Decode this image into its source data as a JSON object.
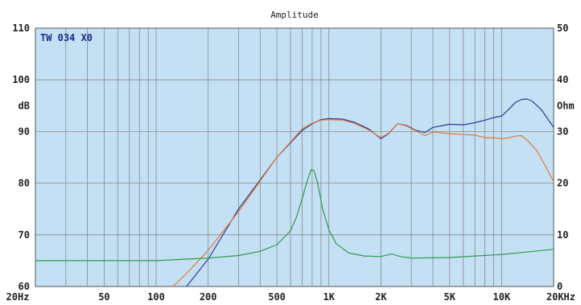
{
  "chart_data": {
    "type": "line",
    "title": "Amplitude",
    "model_label": "TW 034 X0",
    "y_left": {
      "label": "dB",
      "lim": [
        60,
        110
      ],
      "ticks": [
        60,
        70,
        80,
        90,
        100,
        110
      ],
      "tick_labels": [
        "60",
        "70",
        "80",
        "90",
        "100",
        "110"
      ]
    },
    "y_right": {
      "label": "Ohm",
      "lim": [
        0,
        50
      ],
      "ticks": [
        0,
        10,
        20,
        30,
        40,
        50
      ],
      "tick_labels": [
        "0",
        "10",
        "20",
        "30",
        "40",
        "50"
      ]
    },
    "x": {
      "scale": "log",
      "lim": [
        20,
        20000
      ],
      "ticks": [
        20,
        50,
        100,
        200,
        500,
        1000,
        2000,
        5000,
        10000,
        20000
      ],
      "tick_labels": [
        "20Hz",
        "50",
        "100",
        "200",
        "500",
        "1K",
        "2K",
        "5K",
        "10K",
        "20KHz"
      ]
    },
    "grid": true,
    "colors": {
      "background": "#c4e0f4",
      "grid": "#8a8a8a",
      "blue": "#2b3a9a",
      "orange": "#e07a3a",
      "green": "#2e9a4a"
    },
    "series": [
      {
        "color": "#2b3a9a",
        "axis": "left",
        "points": [
          [
            150,
            60
          ],
          [
            200,
            65.3
          ],
          [
            300,
            75
          ],
          [
            500,
            85
          ],
          [
            700,
            90.2
          ],
          [
            800,
            91.5
          ],
          [
            900,
            92.3
          ],
          [
            1000,
            92.5
          ],
          [
            1200,
            92.4
          ],
          [
            1400,
            91.8
          ],
          [
            1700,
            90.5
          ],
          [
            2000,
            88.6
          ],
          [
            2200,
            89.5
          ],
          [
            2500,
            91.5
          ],
          [
            2800,
            91.2
          ],
          [
            3200,
            90.2
          ],
          [
            3600,
            89.8
          ],
          [
            4000,
            90.8
          ],
          [
            5000,
            91.4
          ],
          [
            6000,
            91.3
          ],
          [
            7000,
            91.7
          ],
          [
            8000,
            92.2
          ],
          [
            9000,
            92.7
          ],
          [
            10000,
            93
          ],
          [
            11000,
            94.3
          ],
          [
            12000,
            95.6
          ],
          [
            13000,
            96.2
          ],
          [
            14000,
            96.3
          ],
          [
            15000,
            95.9
          ],
          [
            17000,
            94.2
          ],
          [
            20000,
            90.8
          ]
        ]
      },
      {
        "color": "#e07a3a",
        "axis": "left",
        "points": [
          [
            125,
            60
          ],
          [
            150,
            62.5
          ],
          [
            200,
            67
          ],
          [
            300,
            74.5
          ],
          [
            500,
            85
          ],
          [
            700,
            90.5
          ],
          [
            800,
            91.6
          ],
          [
            900,
            92.2
          ],
          [
            1000,
            92.3
          ],
          [
            1200,
            92.2
          ],
          [
            1400,
            91.6
          ],
          [
            1700,
            90.3
          ],
          [
            2000,
            88.8
          ],
          [
            2200,
            89.6
          ],
          [
            2500,
            91.5
          ],
          [
            2800,
            91.1
          ],
          [
            3200,
            90.1
          ],
          [
            3600,
            89.2
          ],
          [
            4000,
            89.9
          ],
          [
            5000,
            89.6
          ],
          [
            6000,
            89.4
          ],
          [
            7000,
            89.3
          ],
          [
            8000,
            88.8
          ],
          [
            9000,
            88.8
          ],
          [
            10000,
            88.6
          ],
          [
            11000,
            88.8
          ],
          [
            12000,
            89.1
          ],
          [
            13000,
            89.2
          ],
          [
            14000,
            88.4
          ],
          [
            16000,
            86.3
          ],
          [
            18000,
            83.2
          ],
          [
            20000,
            80.3
          ]
        ]
      },
      {
        "color": "#2e9a4a",
        "axis": "right",
        "points": [
          [
            20,
            5
          ],
          [
            100,
            5
          ],
          [
            200,
            5.5
          ],
          [
            300,
            6
          ],
          [
            400,
            6.8
          ],
          [
            500,
            8.1
          ],
          [
            600,
            10.8
          ],
          [
            650,
            13.5
          ],
          [
            700,
            17
          ],
          [
            750,
            20.5
          ],
          [
            790,
            22.6
          ],
          [
            820,
            22.4
          ],
          [
            860,
            20
          ],
          [
            920,
            15
          ],
          [
            1000,
            11
          ],
          [
            1100,
            8.3
          ],
          [
            1300,
            6.5
          ],
          [
            1600,
            5.9
          ],
          [
            2000,
            5.8
          ],
          [
            2300,
            6.3
          ],
          [
            2600,
            5.8
          ],
          [
            3000,
            5.5
          ],
          [
            5000,
            5.6
          ],
          [
            10000,
            6.2
          ],
          [
            20000,
            7.2
          ]
        ]
      }
    ]
  }
}
